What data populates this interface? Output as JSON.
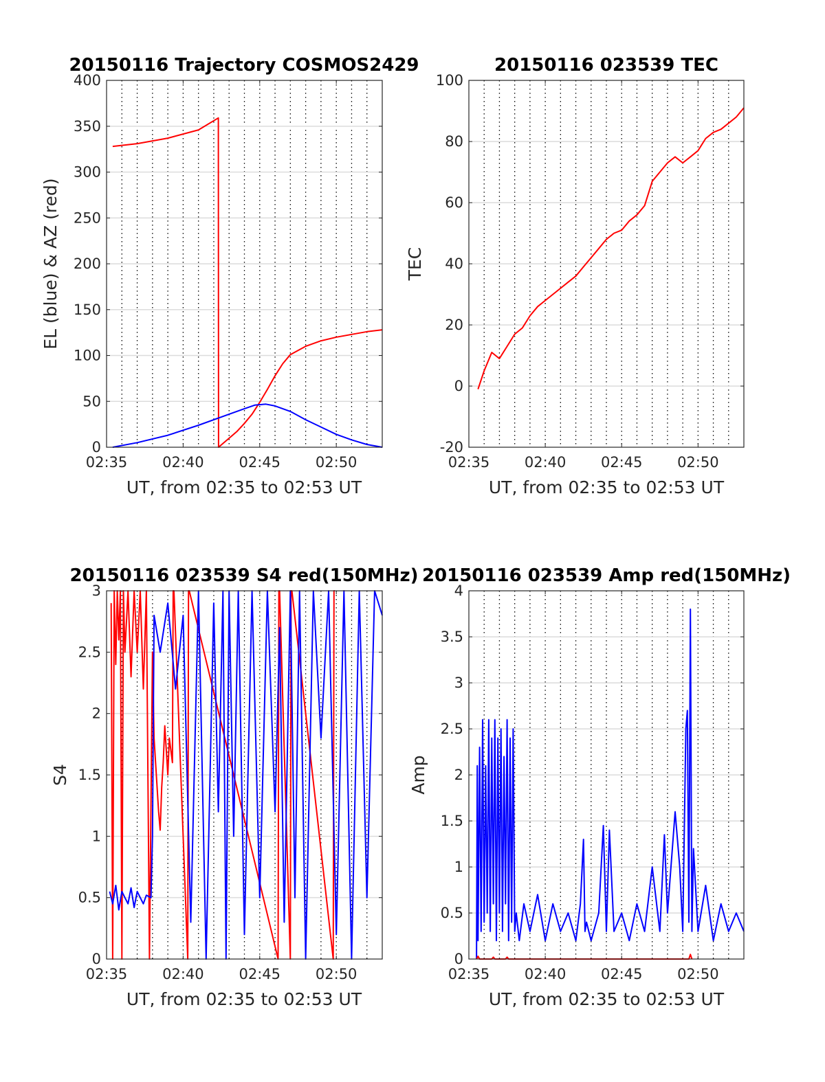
{
  "chart_data": [
    {
      "id": "trajectory",
      "type": "line",
      "title": "20150116 Trajectory COSMOS2429",
      "xlabel": "UT, from 02:35 to 02:53 UT",
      "ylabel": "EL (blue) & AZ (red)",
      "xlim": [
        0,
        18
      ],
      "ylim": [
        0,
        400
      ],
      "xticks": [
        0,
        5,
        10,
        15
      ],
      "xtick_labels": [
        "02:35",
        "02:40",
        "02:45",
        "02:50"
      ],
      "yticks": [
        0,
        50,
        100,
        150,
        200,
        250,
        300,
        350,
        400
      ],
      "ytick_labels": [
        "0",
        "50",
        "100",
        "150",
        "200",
        "250",
        "300",
        "350",
        "400"
      ],
      "grid": true,
      "series": [
        {
          "color": "#ff0000",
          "x": [
            0.4,
            2,
            4,
            6,
            7.3,
            7.31,
            8.5,
            9,
            9.5,
            10,
            10.5,
            11,
            11.5,
            12,
            13,
            14,
            15,
            16,
            17,
            18
          ],
          "y": [
            328,
            331,
            337,
            346,
            359,
            0,
            17,
            26,
            36,
            49,
            63,
            78,
            91,
            101,
            110,
            116,
            120,
            123,
            126,
            128
          ]
        },
        {
          "color": "#0000ff",
          "x": [
            0.4,
            2,
            4,
            6,
            8,
            9,
            9.7,
            10.4,
            11,
            12,
            13,
            14,
            15,
            16,
            17,
            18
          ],
          "y": [
            0,
            5,
            13,
            24,
            36,
            42,
            46,
            47,
            45,
            39,
            30,
            22,
            14,
            8,
            3,
            0
          ]
        }
      ]
    },
    {
      "id": "tec",
      "type": "line",
      "title": "20150116 023539 TEC",
      "xlabel": "UT, from 02:35 to 02:53 UT",
      "ylabel": "TEC",
      "xlim": [
        0,
        18
      ],
      "ylim": [
        -20,
        100
      ],
      "xticks": [
        0,
        5,
        10,
        15
      ],
      "xtick_labels": [
        "02:35",
        "02:40",
        "02:45",
        "02:50"
      ],
      "yticks": [
        -20,
        0,
        20,
        40,
        60,
        80,
        100
      ],
      "ytick_labels": [
        "-20",
        "0",
        "20",
        "40",
        "60",
        "80",
        "100"
      ],
      "grid": true,
      "series": [
        {
          "color": "#ff0000",
          "x": [
            0.6,
            1,
            1.5,
            2,
            2.5,
            3,
            3.5,
            4,
            4.5,
            5,
            5.5,
            6,
            6.5,
            7,
            7.5,
            8,
            8.5,
            9,
            9.5,
            10,
            10.5,
            11,
            11.5,
            12,
            12.5,
            13,
            13.5,
            14,
            14.5,
            15,
            15.5,
            16,
            16.5,
            17,
            17.5,
            18
          ],
          "y": [
            -1,
            5,
            11,
            9,
            13,
            17,
            19,
            23,
            26,
            28,
            30,
            32,
            34,
            36,
            39,
            42,
            45,
            48,
            50,
            51,
            54,
            56,
            59,
            67,
            70,
            73,
            75,
            73,
            75,
            77,
            81,
            83,
            84,
            86,
            88,
            91
          ]
        }
      ]
    },
    {
      "id": "s4",
      "type": "line",
      "title": "20150116 023539 S4 red(150MHz)",
      "xlabel": "UT, from 02:35 to 02:53 UT",
      "ylabel": "S4",
      "xlim": [
        0,
        18
      ],
      "ylim": [
        0,
        3
      ],
      "xticks": [
        0,
        5,
        10,
        15
      ],
      "xtick_labels": [
        "02:35",
        "02:40",
        "02:45",
        "02:50"
      ],
      "yticks": [
        0,
        0.5,
        1,
        1.5,
        2,
        2.5,
        3
      ],
      "ytick_labels": [
        "0",
        "0.5",
        "1",
        "1.5",
        "2",
        "2.5",
        "3"
      ],
      "grid": true,
      "series": [
        {
          "color": "#ff0000",
          "x": [
            0.3,
            0.4,
            0.5,
            0.6,
            0.7,
            0.8,
            0.9,
            1.0,
            1.1,
            1.2,
            1.4,
            1.6,
            1.8,
            2.0,
            2.2,
            2.4,
            2.6,
            2.8,
            3.0,
            3.1,
            3.2,
            3.3,
            3.4,
            3.5,
            3.6,
            3.7,
            3.8,
            3.9,
            4.0,
            4.1,
            4.3,
            4.35,
            4.4,
            5.3,
            5.35,
            5.4,
            11.2,
            11.25,
            11.3,
            12.0,
            12.05,
            12.1,
            14.8,
            14.85,
            14.9
          ],
          "y": [
            2.9,
            0,
            3,
            2.4,
            3,
            2.6,
            3,
            0,
            3,
            2.5,
            3,
            2.3,
            3,
            2.5,
            3,
            2.2,
            3,
            0,
            2.5,
            1.8,
            1.6,
            1.4,
            1.2,
            1.05,
            1.4,
            1.6,
            1.9,
            1.7,
            1.5,
            1.8,
            1.6,
            3,
            3,
            0,
            3,
            3,
            0,
            3,
            3,
            0,
            3,
            3,
            0,
            3,
            3
          ]
        },
        {
          "color": "#0000ff",
          "x": [
            0.2,
            0.4,
            0.6,
            0.8,
            1.0,
            1.2,
            1.4,
            1.6,
            1.8,
            2.0,
            2.2,
            2.4,
            2.6,
            2.9,
            3.0,
            3.1,
            3.5,
            4.0,
            4.5,
            5.0,
            5.5,
            6.0,
            6.5,
            7.0,
            7.3,
            7.6,
            7.8,
            8.0,
            8.3,
            8.6,
            9.0,
            9.5,
            10.0,
            10.5,
            11.0,
            11.3,
            11.6,
            12.0,
            12.3,
            12.6,
            13.0,
            13.5,
            14.0,
            14.5,
            15.0,
            15.5,
            16.0,
            16.5,
            17.0,
            17.5,
            18.0
          ],
          "y": [
            0.55,
            0.45,
            0.6,
            0.4,
            0.55,
            0.5,
            0.45,
            0.58,
            0.42,
            0.55,
            0.5,
            0.45,
            0.52,
            0.5,
            1.0,
            2.8,
            2.5,
            2.9,
            2.2,
            2.8,
            0.3,
            3,
            0,
            2.9,
            1.2,
            3,
            0,
            3,
            1.0,
            3,
            0.2,
            3,
            0.5,
            3,
            1.2,
            2.7,
            0.3,
            3,
            0.5,
            3,
            0,
            3,
            1.8,
            3,
            0.2,
            3,
            0,
            3,
            0.5,
            3,
            2.8
          ]
        }
      ]
    },
    {
      "id": "amp",
      "type": "line",
      "title": "20150116 023539 Amp red(150MHz)",
      "xlabel": "UT, from 02:35 to 02:53 UT",
      "ylabel": "Amp",
      "xlim": [
        0,
        18
      ],
      "ylim": [
        0,
        4
      ],
      "xticks": [
        0,
        5,
        10,
        15
      ],
      "xtick_labels": [
        "02:35",
        "02:40",
        "02:45",
        "02:50"
      ],
      "yticks": [
        0,
        0.5,
        1,
        1.5,
        2,
        2.5,
        3,
        3.5,
        4
      ],
      "ytick_labels": [
        "0",
        "0.5",
        "1",
        "1.5",
        "2",
        "2.5",
        "3",
        "3.5",
        "4"
      ],
      "grid": true,
      "series": [
        {
          "color": "#0000ff",
          "x": [
            0.5,
            0.55,
            0.6,
            0.7,
            0.8,
            0.9,
            1.0,
            1.1,
            1.2,
            1.3,
            1.4,
            1.5,
            1.6,
            1.7,
            1.8,
            1.9,
            2.0,
            2.1,
            2.2,
            2.3,
            2.4,
            2.5,
            2.6,
            2.7,
            2.8,
            2.9,
            3.0,
            3.1,
            3.3,
            3.6,
            4.0,
            4.5,
            5.0,
            5.5,
            6.0,
            6.5,
            7.0,
            7.3,
            7.5,
            7.6,
            7.7,
            8.0,
            8.5,
            8.8,
            9.0,
            9.2,
            9.5,
            10.0,
            10.5,
            11.0,
            11.5,
            12.0,
            12.5,
            12.8,
            13.0,
            13.5,
            13.8,
            14.0,
            14.2,
            14.3,
            14.4,
            14.5,
            14.6,
            14.7,
            15.0,
            15.5,
            16.0,
            16.5,
            17.0,
            17.5,
            18.0
          ],
          "y": [
            0,
            2.1,
            0.2,
            2.3,
            0.3,
            2.6,
            0.4,
            2.1,
            0.5,
            2.6,
            0.3,
            2.4,
            0.6,
            2.6,
            0.2,
            2.4,
            0.5,
            2.5,
            0.3,
            2.2,
            0.6,
            2.6,
            0.2,
            2.4,
            0.4,
            2.5,
            0.3,
            0.5,
            0.2,
            0.6,
            0.3,
            0.7,
            0.2,
            0.6,
            0.3,
            0.5,
            0.2,
            0.6,
            1.3,
            0.3,
            0.4,
            0.2,
            0.5,
            1.45,
            0.3,
            1.4,
            0.3,
            0.5,
            0.2,
            0.6,
            0.3,
            1.0,
            0.3,
            1.35,
            0.5,
            1.6,
            1.0,
            0.3,
            2.5,
            2.7,
            0.4,
            3.8,
            0.3,
            1.2,
            0.3,
            0.8,
            0.2,
            0.6,
            0.3,
            0.5,
            0.3
          ]
        },
        {
          "color": "#ff0000",
          "x": [
            0.5,
            0.6,
            0.7,
            1.5,
            1.6,
            1.7,
            2.4,
            2.5,
            2.6,
            14.4,
            14.5,
            14.6
          ],
          "y": [
            0,
            0.03,
            0,
            0,
            0.02,
            0,
            0,
            0.02,
            0,
            0,
            0.05,
            0
          ]
        }
      ]
    }
  ]
}
